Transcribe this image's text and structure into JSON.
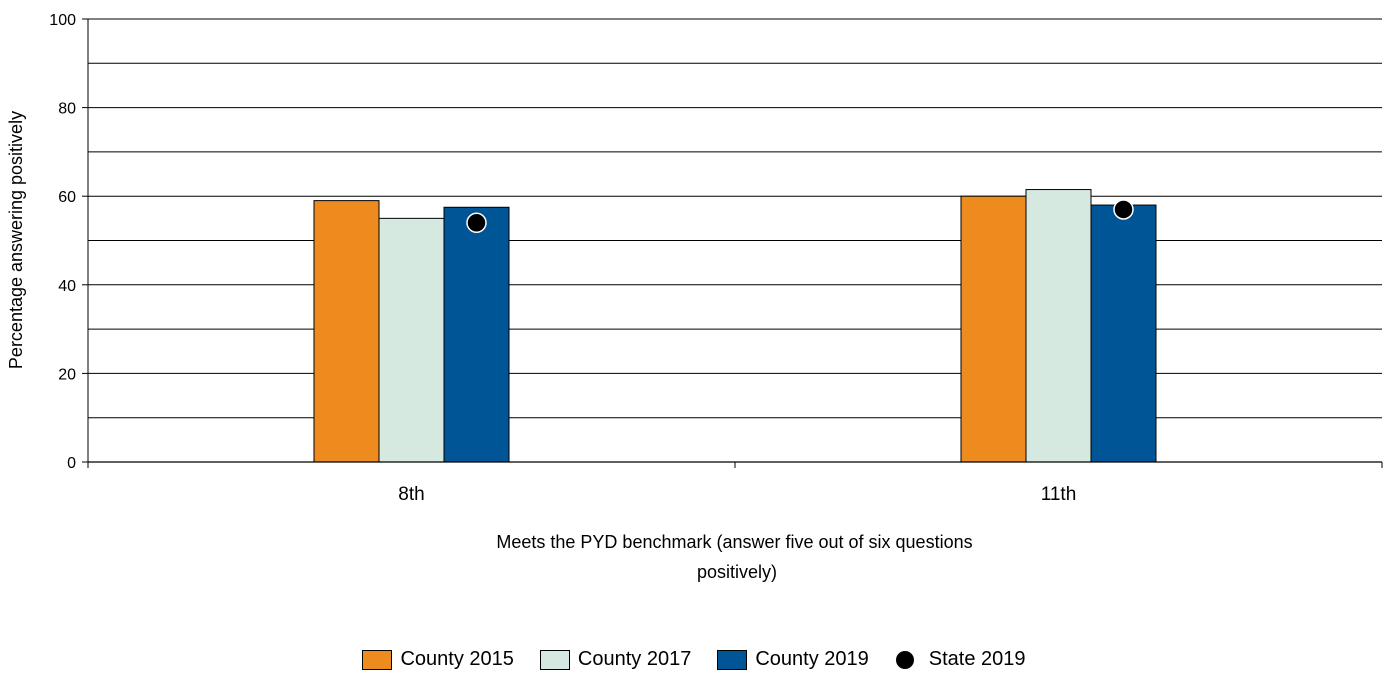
{
  "chart_data": {
    "type": "bar",
    "categories": [
      "8th",
      "11th"
    ],
    "series": [
      {
        "name": "County 2015",
        "values": [
          59,
          60
        ],
        "color": "#ED8B1F"
      },
      {
        "name": "County 2017",
        "values": [
          55,
          61.5
        ],
        "color": "#D6E9E0"
      },
      {
        "name": "County 2019",
        "values": [
          57.5,
          58
        ],
        "color": "#005596"
      }
    ],
    "markers": [
      {
        "name": "State 2019",
        "values": [
          54,
          57
        ],
        "color": "#000000"
      }
    ],
    "xlabel": "Meets the PYD benchmark (answer five out of six questions positively)",
    "xlabel_lines": [
      "Meets the PYD benchmark (answer five out of six questions",
      "positively)"
    ],
    "ylabel": "Percentage answering positively",
    "ylim": [
      0,
      100
    ],
    "yticks": [
      0,
      20,
      40,
      60,
      80,
      100
    ],
    "gridlines": [
      10,
      20,
      30,
      40,
      50,
      60,
      70,
      80,
      90,
      100
    ],
    "grid": true,
    "legend_position": "bottom"
  }
}
